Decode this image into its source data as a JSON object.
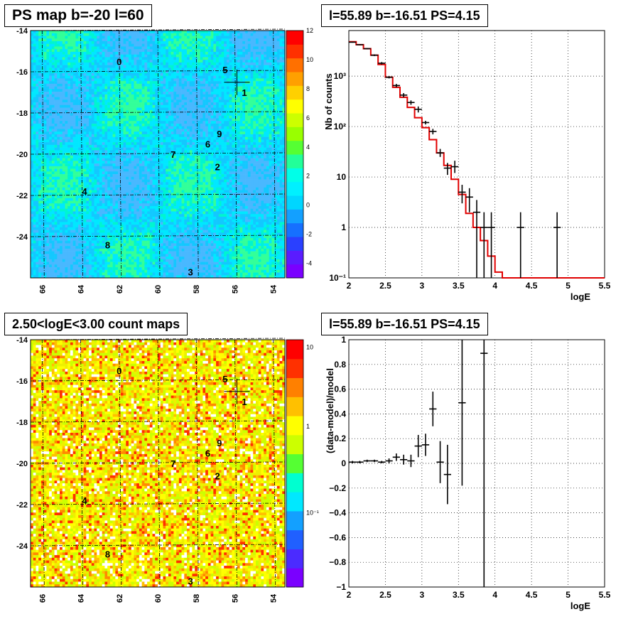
{
  "chart_data": [
    {
      "type": "heatmap",
      "title": "PS map b=-20 l=60",
      "xlabel": "",
      "ylabel": "",
      "x_ticks": [
        "66",
        "64",
        "62",
        "60",
        "58",
        "56",
        "54"
      ],
      "y_ticks": [
        "-14",
        "-16",
        "-18",
        "-20",
        "-22",
        "-24"
      ],
      "x_range": [
        66.6,
        53.4
      ],
      "y_range": [
        -26,
        -14
      ],
      "colorbar": {
        "min": -5,
        "max": 12,
        "ticks": [
          "12",
          "10",
          "8",
          "6",
          "4",
          "2",
          "0",
          "-2",
          "-4"
        ]
      },
      "grid": true,
      "marker": {
        "l": 55.89,
        "b": -16.51
      },
      "sources": [
        {
          "label": "0",
          "l": 62.0,
          "b": -15.5
        },
        {
          "label": "5",
          "l": 56.5,
          "b": -15.9
        },
        {
          "label": "1",
          "l": 55.5,
          "b": -17.0
        },
        {
          "label": "9",
          "l": 56.8,
          "b": -19.0
        },
        {
          "label": "6",
          "l": 57.4,
          "b": -19.5
        },
        {
          "label": "7",
          "l": 59.2,
          "b": -20.0
        },
        {
          "label": "2",
          "l": 56.9,
          "b": -20.6
        },
        {
          "label": "4",
          "l": 63.8,
          "b": -21.8
        },
        {
          "label": "8",
          "l": 62.6,
          "b": -24.4
        },
        {
          "label": "3",
          "l": 58.3,
          "b": -25.7
        }
      ]
    },
    {
      "type": "line",
      "title": "l=55.89 b=-16.51 PS=4.15",
      "xlabel": "logE",
      "ylabel": "Nb of counts",
      "log_y": true,
      "xlim": [
        2,
        5.5
      ],
      "ylim": [
        0.1,
        8000
      ],
      "x_ticks": [
        "2",
        "2.5",
        "3",
        "3.5",
        "4",
        "4.5",
        "5",
        "5.5"
      ],
      "y_ticks": [
        "10⁻¹",
        "1",
        "10",
        "10²",
        "10³"
      ],
      "grid": true,
      "series": [
        {
          "kind": "data-points",
          "color": "#000000",
          "x": [
            2.05,
            2.15,
            2.25,
            2.35,
            2.45,
            2.55,
            2.65,
            2.75,
            2.85,
            2.95,
            3.05,
            3.15,
            3.25,
            3.35,
            3.45,
            3.55,
            3.65,
            3.75,
            3.85,
            3.95,
            4.35,
            4.85
          ],
          "y": [
            4700,
            4200,
            3500,
            2600,
            1800,
            950,
            650,
            420,
            300,
            220,
            120,
            80,
            30,
            15,
            16,
            5,
            4,
            2,
            1,
            1,
            1,
            1
          ],
          "y_low": [
            4600,
            4100,
            3400,
            2500,
            1700,
            900,
            600,
            380,
            270,
            190,
            110,
            70,
            25,
            11,
            12,
            3,
            2,
            0.1,
            0.1,
            0.1,
            0.1,
            0.1
          ],
          "y_high": [
            4800,
            4300,
            3600,
            2700,
            1900,
            1000,
            700,
            460,
            330,
            250,
            130,
            90,
            36,
            19,
            21,
            7,
            6,
            3.5,
            2,
            2,
            2,
            2
          ]
        },
        {
          "kind": "model-step",
          "color": "#e00000",
          "edges": [
            2.0,
            2.1,
            2.2,
            2.3,
            2.4,
            2.5,
            2.6,
            2.7,
            2.8,
            2.9,
            3.0,
            3.1,
            3.2,
            3.3,
            3.4,
            3.5,
            3.6,
            3.7,
            3.8,
            3.9,
            4.0,
            4.1,
            5.5
          ],
          "y": [
            4800,
            4200,
            3500,
            2600,
            1700,
            950,
            600,
            380,
            240,
            150,
            95,
            55,
            30,
            17,
            9,
            4.5,
            1.9,
            1.0,
            0.55,
            0.27,
            0.13,
            0.1
          ]
        }
      ]
    },
    {
      "type": "heatmap",
      "title": "2.50<logE<3.00 count maps",
      "xlabel": "",
      "ylabel": "",
      "x_ticks": [
        "66",
        "64",
        "62",
        "60",
        "58",
        "56",
        "54"
      ],
      "y_ticks": [
        "-14",
        "-16",
        "-18",
        "-20",
        "-22",
        "-24"
      ],
      "x_range": [
        66.6,
        53.4
      ],
      "y_range": [
        -26,
        -14
      ],
      "colorbar": {
        "scale": "log",
        "ticks": [
          "10",
          "1",
          "10⁻¹"
        ]
      },
      "grid": true
    },
    {
      "type": "scatter",
      "title": "l=55.89 b=-16.51 PS=4.15",
      "xlabel": "logE",
      "ylabel": "(data-model)/model",
      "xlim": [
        2,
        5.5
      ],
      "ylim": [
        -1,
        1
      ],
      "x_ticks": [
        "2",
        "2.5",
        "3",
        "3.5",
        "4",
        "4.5",
        "5",
        "5.5"
      ],
      "y_ticks": [
        "1",
        "0.8",
        "0.6",
        "0.4",
        "0.2",
        "0",
        "−0.2",
        "−0.4",
        "−0.6",
        "−0.8",
        "−1"
      ],
      "grid": true,
      "series": [
        {
          "color": "#000000",
          "x": [
            2.05,
            2.15,
            2.25,
            2.35,
            2.45,
            2.55,
            2.65,
            2.75,
            2.85,
            2.95,
            3.05,
            3.15,
            3.25,
            3.35,
            3.55,
            3.85
          ],
          "y": [
            0.01,
            0.01,
            0.02,
            0.02,
            0.01,
            0.02,
            0.05,
            0.03,
            0.02,
            0.14,
            0.15,
            0.44,
            0.01,
            -0.09,
            0.49,
            0.89
          ],
          "y_low": [
            0.0,
            0.0,
            0.01,
            0.01,
            0.0,
            0.0,
            0.02,
            -0.01,
            -0.03,
            0.05,
            0.06,
            0.3,
            -0.16,
            -0.33,
            -0.18,
            -1.0
          ],
          "y_high": [
            0.02,
            0.02,
            0.03,
            0.03,
            0.02,
            0.04,
            0.08,
            0.07,
            0.07,
            0.23,
            0.24,
            0.58,
            0.18,
            0.15,
            1.0,
            1.0
          ]
        }
      ]
    }
  ]
}
